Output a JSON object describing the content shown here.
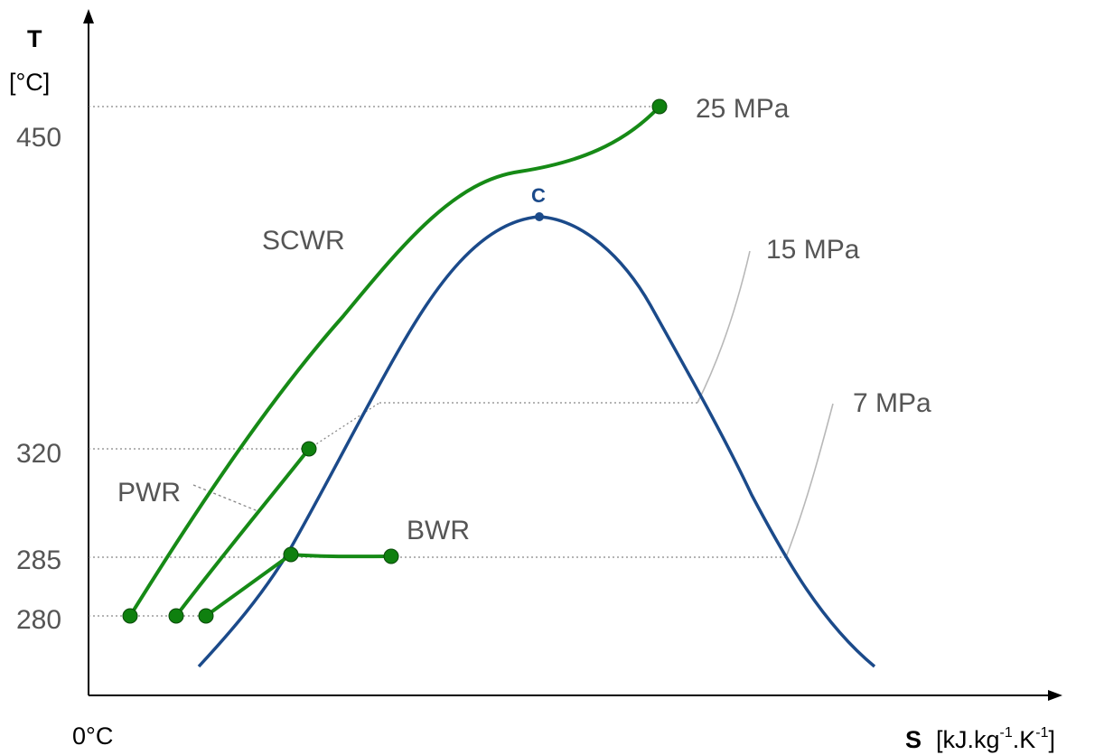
{
  "y_axis": {
    "name": "T",
    "unit": "[°C]"
  },
  "x_axis": {
    "name": "S",
    "unit_prefix": "[kJ.kg",
    "unit_exp1": "-1",
    "unit_mid": ".K",
    "unit_exp2": "-1",
    "unit_suffix": "]"
  },
  "origin_label": "0°C",
  "y_ticks": [
    "450",
    "320",
    "285",
    "280"
  ],
  "critical_point_label": "C",
  "pressure_labels": {
    "p25": "25 MPa",
    "p15": "15 MPa",
    "p7": "7 MPa"
  },
  "reactor_labels": {
    "scwr": "SCWR",
    "pwr": "PWR",
    "bwr": "BWR"
  },
  "colors": {
    "cycle": "#168a16",
    "saturation_dome": "#1b4a8a",
    "guides": "#888888"
  }
}
